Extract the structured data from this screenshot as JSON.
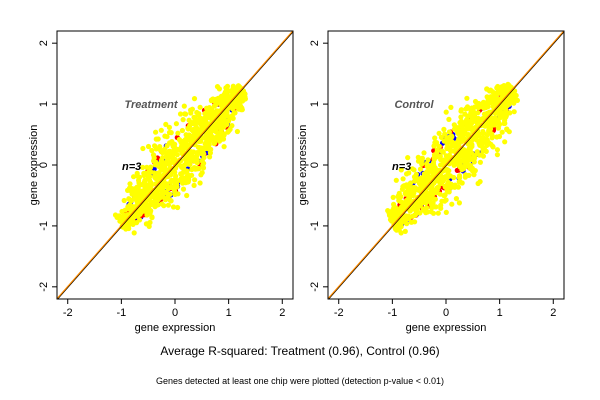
{
  "summary_text": "Average R-squared: Treatment (0.96), Control (0.96)",
  "footnote_text": "Genes detected at least one chip were plotted (detection p-value < 0.01)",
  "colors": {
    "points_main": "#ffff00",
    "points_red": "#ff0000",
    "points_blue": "#0000ff",
    "diagonal_orange": "#ff8c00",
    "diagonal_black": "#000000"
  },
  "chart_data": [
    {
      "type": "scatter",
      "panel_title": "Treatment",
      "n_label": "n=3",
      "xlabel": "gene expression",
      "ylabel": "gene expression",
      "xlim": [
        -2.2,
        2.2
      ],
      "ylim": [
        -2.2,
        2.2
      ],
      "xticks": [
        "-2",
        "-1",
        "0",
        "1",
        "2"
      ],
      "yticks": [
        "-2",
        "-1",
        "0",
        "1",
        "2"
      ],
      "reference_line": "y = x",
      "point_cloud": {
        "range": [
          -1.0,
          1.25
        ],
        "spread": 0.35,
        "count": 900
      }
    },
    {
      "type": "scatter",
      "panel_title": "Control",
      "n_label": "n=3",
      "xlabel": "gene expression",
      "ylabel": "gene expression",
      "xlim": [
        -2.2,
        2.2
      ],
      "ylim": [
        -2.2,
        2.2
      ],
      "xticks": [
        "-2",
        "-1",
        "0",
        "1",
        "2"
      ],
      "yticks": [
        "-2",
        "-1",
        "0",
        "1",
        "2"
      ],
      "reference_line": "y = x",
      "point_cloud": {
        "range": [
          -1.0,
          1.25
        ],
        "spread": 0.35,
        "count": 900
      }
    }
  ]
}
